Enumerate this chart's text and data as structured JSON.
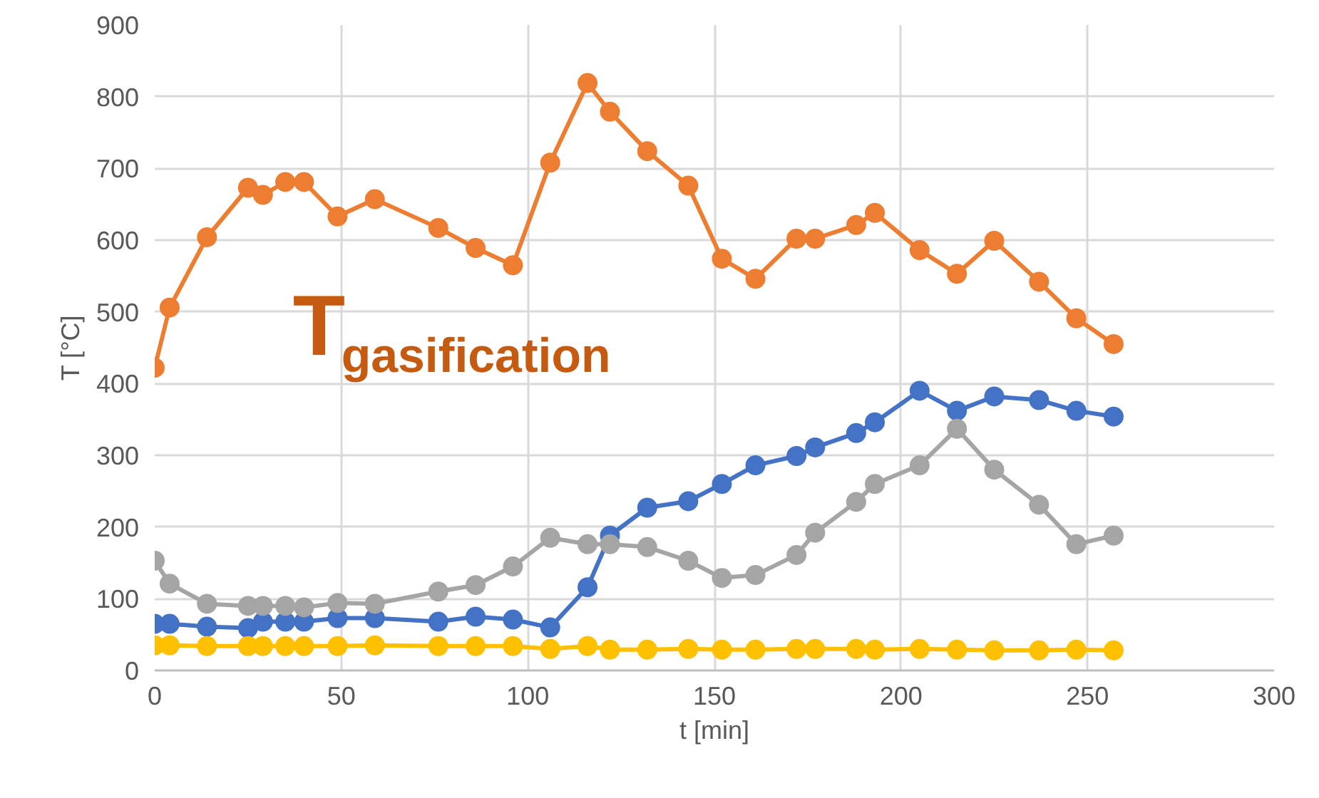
{
  "chart_data": {
    "type": "line",
    "xlabel": "t [min]",
    "ylabel": "T [°C]",
    "x": [
      0,
      4,
      14,
      25,
      29,
      35,
      40,
      49,
      59,
      76,
      86,
      96,
      106,
      116,
      122,
      132,
      143,
      152,
      161,
      172,
      177,
      188,
      193,
      205,
      215,
      225,
      237,
      247,
      257
    ],
    "series": [
      {
        "color": "#ed7d31",
        "values": [
          422,
          506,
          604,
          673,
          663,
          681,
          681,
          633,
          657,
          617,
          589,
          565,
          708,
          819,
          779,
          724,
          676,
          574,
          546,
          602,
          602,
          621,
          638,
          586,
          553,
          599,
          542,
          491,
          455
        ]
      },
      {
        "color": "#4472c4",
        "values": [
          65,
          65,
          61,
          59,
          68,
          68,
          68,
          73,
          73,
          68,
          75,
          71,
          60,
          116,
          188,
          227,
          236,
          260,
          286,
          299,
          311,
          331,
          346,
          390,
          362,
          382,
          377,
          362,
          354
        ]
      },
      {
        "color": "#a5a5a5",
        "values": [
          153,
          121,
          93,
          90,
          90,
          90,
          88,
          94,
          93,
          110,
          119,
          145,
          185,
          176,
          176,
          172,
          153,
          129,
          133,
          161,
          192,
          235,
          260,
          286,
          337,
          280,
          231,
          176,
          188
        ]
      },
      {
        "color": "#ffc000",
        "values": [
          35,
          35,
          34,
          34,
          34,
          34,
          34,
          34,
          35,
          34,
          34,
          34,
          30,
          34,
          29,
          29,
          30,
          29,
          29,
          30,
          30,
          30,
          29,
          30,
          29,
          28,
          28,
          29,
          28
        ]
      }
    ],
    "xlim": [
      0,
      300
    ],
    "xticks": [
      0,
      50,
      100,
      150,
      200,
      250,
      300
    ],
    "ylim": [
      0,
      900
    ],
    "yticks": [
      0,
      100,
      200,
      300,
      400,
      500,
      600,
      700,
      800,
      900
    ],
    "grid": true,
    "marker": "circle",
    "line_style": "solid",
    "annotations": [
      "T$_{gasification}$"
    ]
  }
}
